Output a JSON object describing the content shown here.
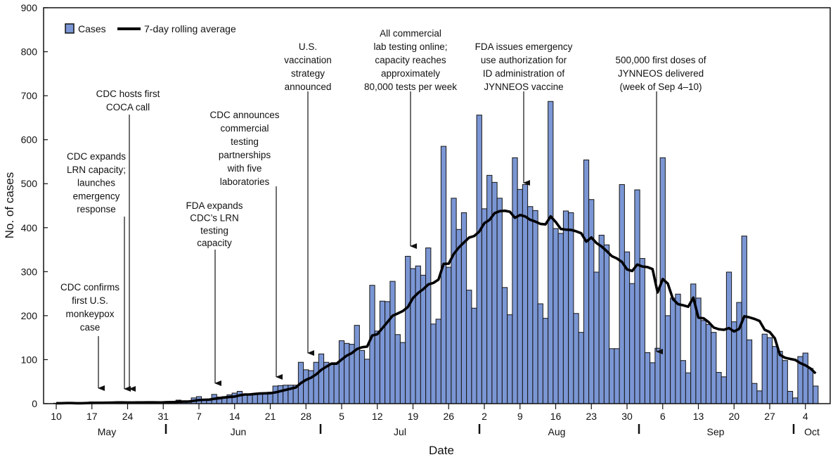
{
  "chart_data": {
    "type": "bar",
    "title": "",
    "xlabel": "Date",
    "ylabel": "No. of cases",
    "ylim": [
      0,
      900
    ],
    "yticks": [
      0,
      100,
      200,
      300,
      400,
      500,
      600,
      700,
      800,
      900
    ],
    "grid": false,
    "legend": {
      "placement": "top-left",
      "entries": [
        "Cases",
        "7-day rolling average"
      ]
    },
    "colors": {
      "bars": "#7b96d4",
      "line": "#000000"
    },
    "xtick_dates": [
      "May 10",
      "May 17",
      "May 24",
      "May 31",
      "Jun 7",
      "Jun 14",
      "Jun 21",
      "Jun 28",
      "Jul 5",
      "Jul 12",
      "Jul 19",
      "Jul 26",
      "Aug 2",
      "Aug 9",
      "Aug 16",
      "Aug 23",
      "Aug 30",
      "Sep 6",
      "Sep 13",
      "Sep 20",
      "Sep 27",
      "Oct 4"
    ],
    "xtick_labels": [
      "10",
      "17",
      "24",
      "31",
      "7",
      "14",
      "21",
      "28",
      "5",
      "12",
      "19",
      "26",
      "2",
      "9",
      "16",
      "23",
      "30",
      "6",
      "13",
      "20",
      "27",
      "4"
    ],
    "months": [
      "May",
      "Jun",
      "Jul",
      "Aug",
      "Sep",
      "Oct"
    ],
    "x": [
      "May 10",
      "May 11",
      "May 12",
      "May 13",
      "May 14",
      "May 15",
      "May 16",
      "May 17",
      "May 18",
      "May 19",
      "May 20",
      "May 21",
      "May 22",
      "May 23",
      "May 24",
      "May 25",
      "May 26",
      "May 27",
      "May 28",
      "May 29",
      "May 30",
      "May 31",
      "Jun 1",
      "Jun 2",
      "Jun 3",
      "Jun 4",
      "Jun 5",
      "Jun 6",
      "Jun 7",
      "Jun 8",
      "Jun 9",
      "Jun 10",
      "Jun 11",
      "Jun 12",
      "Jun 13",
      "Jun 14",
      "Jun 15",
      "Jun 16",
      "Jun 17",
      "Jun 18",
      "Jun 19",
      "Jun 20",
      "Jun 21",
      "Jun 22",
      "Jun 23",
      "Jun 24",
      "Jun 25",
      "Jun 26",
      "Jun 27",
      "Jun 28",
      "Jun 29",
      "Jun 30",
      "Jul 1",
      "Jul 2",
      "Jul 3",
      "Jul 4",
      "Jul 5",
      "Jul 6",
      "Jul 7",
      "Jul 8",
      "Jul 9",
      "Jul 10",
      "Jul 11",
      "Jul 12",
      "Jul 13",
      "Jul 14",
      "Jul 15",
      "Jul 16",
      "Jul 17",
      "Jul 18",
      "Jul 19",
      "Jul 20",
      "Jul 21",
      "Jul 22",
      "Jul 23",
      "Jul 24",
      "Jul 25",
      "Jul 26",
      "Jul 27",
      "Jul 28",
      "Jul 29",
      "Jul 30",
      "Jul 31",
      "Aug 1",
      "Aug 2",
      "Aug 3",
      "Aug 4",
      "Aug 5",
      "Aug 6",
      "Aug 7",
      "Aug 8",
      "Aug 9",
      "Aug 10",
      "Aug 11",
      "Aug 12",
      "Aug 13",
      "Aug 14",
      "Aug 15",
      "Aug 16",
      "Aug 17",
      "Aug 18",
      "Aug 19",
      "Aug 20",
      "Aug 21",
      "Aug 22",
      "Aug 23",
      "Aug 24",
      "Aug 25",
      "Aug 26",
      "Aug 27",
      "Aug 28",
      "Aug 29",
      "Aug 30",
      "Aug 31",
      "Sep 1",
      "Sep 2",
      "Sep 3",
      "Sep 4",
      "Sep 5",
      "Sep 6",
      "Sep 7",
      "Sep 8",
      "Sep 9",
      "Sep 10",
      "Sep 11",
      "Sep 12",
      "Sep 13",
      "Sep 14",
      "Sep 15",
      "Sep 16",
      "Sep 17",
      "Sep 18",
      "Sep 19",
      "Sep 20",
      "Sep 21",
      "Sep 22",
      "Sep 23",
      "Sep 24",
      "Sep 25",
      "Sep 26",
      "Sep 27",
      "Sep 28",
      "Sep 29",
      "Sep 30",
      "Oct 1",
      "Oct 2",
      "Oct 3",
      "Oct 4",
      "Oct 5",
      "Oct 6"
    ],
    "series": [
      {
        "name": "Cases",
        "type": "bar",
        "values": [
          1,
          1,
          2,
          1,
          0,
          1,
          3,
          4,
          2,
          2,
          3,
          2,
          3,
          3,
          3,
          2,
          3,
          3,
          3,
          3,
          2,
          4,
          5,
          5,
          8,
          6,
          4,
          13,
          16,
          9,
          8,
          21,
          15,
          16,
          20,
          24,
          28,
          22,
          22,
          22,
          23,
          24,
          26,
          40,
          41,
          42,
          42,
          42,
          94,
          77,
          75,
          94,
          113,
          94,
          90,
          93,
          143,
          137,
          135,
          178,
          121,
          101,
          269,
          165,
          233,
          232,
          278,
          157,
          139,
          335,
          307,
          313,
          292,
          354,
          181,
          192,
          585,
          310,
          467,
          396,
          434,
          258,
          217,
          656,
          443,
          519,
          503,
          467,
          264,
          202,
          559,
          487,
          498,
          448,
          439,
          227,
          194,
          687,
          398,
          387,
          438,
          434,
          205,
          162,
          554,
          464,
          299,
          383,
          361,
          125,
          125,
          498,
          345,
          273,
          486,
          330,
          116,
          93,
          126,
          559,
          200,
          240,
          249,
          98,
          70,
          272,
          240,
          189,
          180,
          162,
          71,
          61,
          299,
          186,
          230,
          381,
          145,
          46,
          29,
          158,
          150,
          130,
          119,
          98,
          28,
          13,
          107,
          115,
          80,
          40
        ]
      },
      {
        "name": "7-day rolling average",
        "type": "line",
        "window_days": 7
      }
    ],
    "annotations": [
      {
        "lines": [
          "CDC confirms",
          "first U.S.",
          "monkeypox",
          "case"
        ],
        "date": "May 17"
      },
      {
        "lines": [
          "CDC hosts first",
          "COCA call"
        ],
        "date": "May 24"
      },
      {
        "lines": [
          "CDC expands",
          "LRN capacity;",
          "launches",
          "emergency",
          "response"
        ],
        "date": "May 23"
      },
      {
        "lines": [
          "FDA expands",
          "CDC’s LRN",
          "testing",
          "capacity"
        ],
        "date": "Jun 10"
      },
      {
        "lines": [
          "CDC announces",
          "commercial",
          "testing",
          "partnerships",
          "with five",
          "laboratories"
        ],
        "date": "Jun 22"
      },
      {
        "lines": [
          "U.S.",
          "vaccination",
          "strategy",
          "announced"
        ],
        "date": "Jun 28"
      },
      {
        "lines": [
          "All commercial",
          "lab testing online;",
          "capacity reaches",
          "approximately",
          "80,000 tests per week"
        ],
        "date": "Jul 18"
      },
      {
        "lines": [
          "FDA issues emergency",
          "use authorization for",
          "ID administration of",
          "JYNNEOS vaccine"
        ],
        "date": "Aug 9"
      },
      {
        "lines": [
          "500,000 first doses of",
          "JYNNEOS delivered",
          "(week of Sep 4–10)"
        ],
        "date": "Sep 4"
      }
    ]
  }
}
